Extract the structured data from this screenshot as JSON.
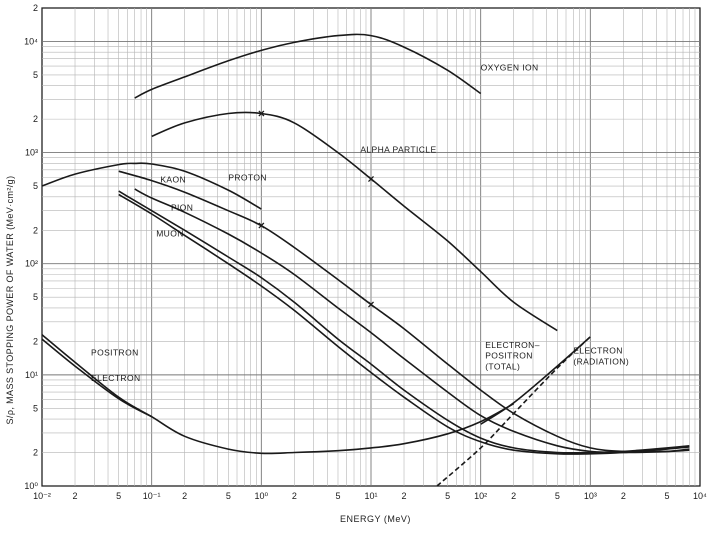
{
  "chart_data": {
    "type": "line",
    "title": "",
    "xlabel": "ENERGY (MeV)",
    "ylabel": "S/ρ, MASS STOPPING POWER OF WATER (MeV·cm²/g)",
    "x_scale": "log",
    "y_scale": "log",
    "xlim": [
      0.01,
      10000
    ],
    "ylim": [
      1,
      20000
    ],
    "grid": true,
    "x_ticks": [
      "10⁻²",
      "2",
      "5",
      "10⁻¹",
      "2",
      "5",
      "10⁰",
      "2",
      "5",
      "10¹",
      "2",
      "5",
      "10²",
      "2",
      "5",
      "10³",
      "2",
      "5",
      "10⁴"
    ],
    "y_ticks": [
      "10⁰",
      "2",
      "5",
      "10¹",
      "2",
      "5",
      "10²",
      "2",
      "5",
      "10³",
      "2",
      "5",
      "10⁴",
      "2"
    ],
    "series": [
      {
        "name": "OXYGEN ION",
        "color": "#1a1a1a",
        "dash": false,
        "x": [
          0.07,
          0.1,
          0.2,
          0.5,
          1,
          2,
          5,
          10,
          20,
          50,
          100
        ],
        "y": [
          3100,
          3700,
          4800,
          6700,
          8300,
          9800,
          11300,
          11300,
          8900,
          5500,
          3400
        ]
      },
      {
        "name": "ALPHA PARTICLE",
        "color": "#1a1a1a",
        "dash": false,
        "x": [
          0.1,
          0.2,
          0.5,
          1,
          2,
          5,
          10,
          20,
          50,
          100,
          200,
          500
        ],
        "y": [
          1400,
          1850,
          2250,
          2250,
          1850,
          1000,
          580,
          330,
          160,
          85,
          45,
          25
        ]
      },
      {
        "name": "PROTON",
        "color": "#1a1a1a",
        "dash": false,
        "x": [
          0.05,
          0.1,
          0.2,
          0.5,
          1,
          2,
          5,
          10,
          20,
          50,
          100,
          200,
          500,
          1000,
          2000,
          5000,
          8000
        ],
        "y": [
          680,
          560,
          440,
          300,
          220,
          140,
          72,
          43,
          26,
          12.5,
          7.3,
          4.5,
          2.8,
          2.2,
          2.05,
          2.05,
          2.1
        ]
      },
      {
        "name": "KAON",
        "color": "#1a1a1a",
        "dash": false,
        "x": [
          0.07,
          0.1,
          0.2,
          0.5,
          1,
          2,
          5,
          10,
          20,
          50,
          100,
          200,
          500,
          1000,
          2000,
          5000,
          8000
        ],
        "y": [
          470,
          390,
          290,
          185,
          125,
          80,
          40,
          24,
          14,
          7,
          4.3,
          3.1,
          2.3,
          2.05,
          2.0,
          2.05,
          2.15
        ]
      },
      {
        "name": "PION",
        "color": "#1a1a1a",
        "dash": false,
        "x": [
          0.05,
          0.1,
          0.2,
          0.5,
          1,
          2,
          5,
          10,
          20,
          50,
          100,
          200,
          500,
          1000,
          2000,
          5000,
          8000
        ],
        "y": [
          450,
          300,
          200,
          115,
          75,
          45,
          21,
          12.5,
          7.3,
          3.9,
          2.7,
          2.2,
          2.0,
          2.0,
          2.05,
          2.2,
          2.3
        ]
      },
      {
        "name": "MUON",
        "color": "#1a1a1a",
        "dash": false,
        "x": [
          0.05,
          0.1,
          0.2,
          0.5,
          1,
          2,
          5,
          10,
          20,
          50,
          100,
          200,
          500,
          1000,
          2000,
          5000,
          8000
        ],
        "y": [
          420,
          280,
          180,
          100,
          63,
          38,
          18,
          10.5,
          6.3,
          3.4,
          2.5,
          2.1,
          1.95,
          1.95,
          2.0,
          2.15,
          2.25
        ]
      },
      {
        "name": "ELECTRON",
        "color": "#1a1a1a",
        "dash": false,
        "x": [
          0.01,
          0.02,
          0.05,
          0.1,
          0.2,
          0.5,
          1,
          2,
          5,
          10,
          20,
          50,
          100,
          200
        ],
        "y": [
          23,
          13,
          6.3,
          4.2,
          2.8,
          2.15,
          1.97,
          2.0,
          2.08,
          2.2,
          2.4,
          2.95,
          3.8,
          5.5
        ]
      },
      {
        "name": "POSITRON",
        "color": "#1a1a1a",
        "dash": false,
        "x": [
          0.01,
          0.02,
          0.05,
          0.1
        ],
        "y": [
          21,
          12,
          6.1,
          4.2
        ]
      },
      {
        "name": "ELECTRON-POSITRON (TOTAL)",
        "color": "#1a1a1a",
        "dash": false,
        "x": [
          100,
          200,
          500,
          1000
        ],
        "y": [
          3.6,
          5.6,
          12,
          22
        ]
      },
      {
        "name": "ELECTRON (RADIATION)",
        "color": "#1a1a1a",
        "dash": true,
        "x": [
          40,
          100,
          200,
          500,
          1000
        ],
        "y": [
          1,
          2.2,
          4.5,
          11.5,
          22
        ]
      },
      {
        "name": "",
        "color": "#1a1a1a",
        "dash": false,
        "x": [
          0.01,
          0.02,
          0.05,
          0.07,
          0.1,
          0.2,
          0.5,
          1
        ],
        "y": [
          500,
          640,
          780,
          800,
          790,
          680,
          460,
          310
        ]
      }
    ],
    "annotations": [
      {
        "text": "OXYGEN ION",
        "x": 100,
        "y": 5500
      },
      {
        "text": "ALPHA PARTICLE",
        "x": 8,
        "y": 1000
      },
      {
        "text": "PROTON",
        "x": 0.5,
        "y": 560
      },
      {
        "text": "KAON",
        "x": 0.12,
        "y": 540
      },
      {
        "text": "PION",
        "x": 0.15,
        "y": 300
      },
      {
        "text": "MUON",
        "x": 0.11,
        "y": 175
      },
      {
        "text": "ELECTRON–",
        "x": 110,
        "y": 17.5
      },
      {
        "text": "POSITRON",
        "x": 110,
        "y": 14
      },
      {
        "text": "(TOTAL)",
        "x": 110,
        "y": 11.2
      },
      {
        "text": "ELECTRON",
        "x": 700,
        "y": 15.5
      },
      {
        "text": "(RADIATION)",
        "x": 700,
        "y": 12.4
      },
      {
        "text": "POSITRON",
        "x": 0.028,
        "y": 15
      },
      {
        "text": "ELECTRON",
        "x": 0.028,
        "y": 8.8
      }
    ],
    "marks": [
      {
        "series": "ALPHA PARTICLE",
        "x": 1
      },
      {
        "series": "ALPHA PARTICLE",
        "x": 10
      },
      {
        "series": "PROTON",
        "x": 1
      },
      {
        "series": "PROTON",
        "x": 10
      }
    ]
  }
}
